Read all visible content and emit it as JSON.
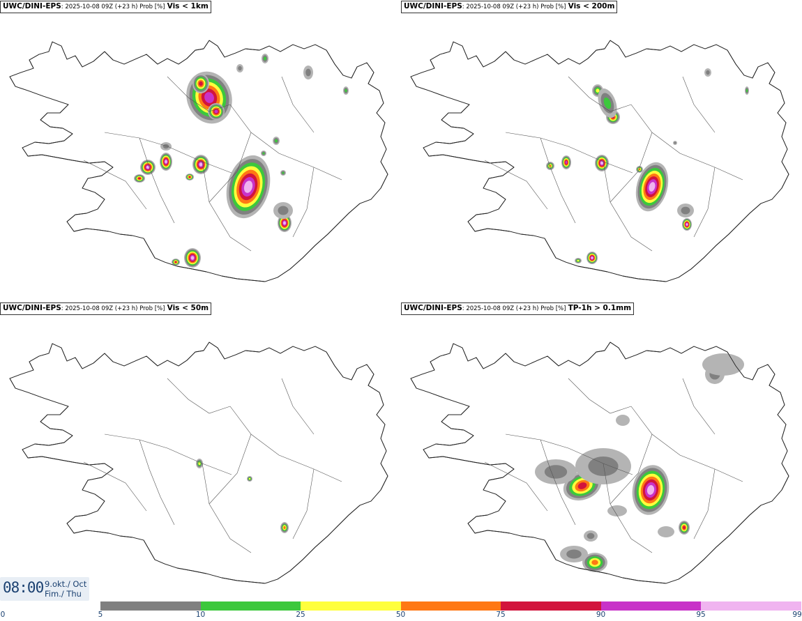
{
  "panels": [
    {
      "source": "UWC/DINI-EPS",
      "meta": ": 2025-10-08 09Z (+23 h) Prob [%]",
      "variable": "Vis < 1km"
    },
    {
      "source": "UWC/DINI-EPS",
      "meta": ": 2025-10-08 09Z (+23 h) Prob [%]",
      "variable": "Vis < 200m"
    },
    {
      "source": "UWC/DINI-EPS",
      "meta": ": 2025-10-08 09Z (+23 h) Prob [%]",
      "variable": "Vis < 50m"
    },
    {
      "source": "UWC/DINI-EPS",
      "meta": ": 2025-10-08 09Z (+23 h) Prob [%]",
      "variable": "TP-1h > 0.1mm"
    }
  ],
  "valid_time": {
    "time": "08:00",
    "date_line1": "9.okt./ Oct",
    "date_line2": "Fim./ Thu"
  },
  "colorbar": {
    "ticks": [
      "0",
      "5",
      "10",
      "25",
      "50",
      "75",
      "90",
      "95",
      "99"
    ],
    "colors": [
      "#ffffff",
      "#b4b4b4",
      "#808080",
      "#3cc83c",
      "#ffff3c",
      "#ff7814",
      "#d2143c",
      "#c832c8",
      "#f0b4f0"
    ]
  },
  "colors": {
    "coast": "#222222",
    "label_blue": "#1a4070"
  }
}
